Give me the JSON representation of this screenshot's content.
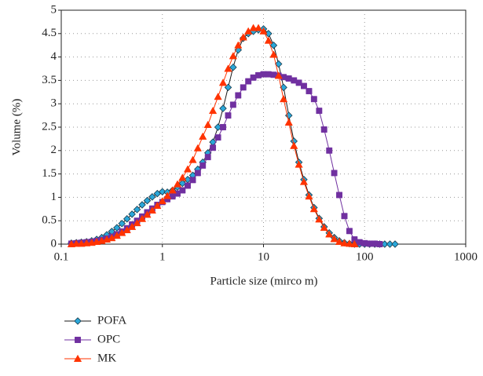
{
  "chart_data": {
    "type": "line",
    "x_label": "Particle size (mirco m)",
    "y_label": "Volume (%)",
    "x_log": true,
    "grid": true,
    "legend": "bottom-left",
    "xlim": [
      0.1,
      1000
    ],
    "xticks": [
      0.1,
      1,
      10,
      100,
      1000
    ],
    "ylim": [
      0,
      5
    ],
    "yticks": [
      0,
      0.5,
      1,
      1.5,
      2,
      2.5,
      3,
      3.5,
      4,
      4.5,
      5
    ],
    "x": [
      0.126,
      0.141,
      0.158,
      0.178,
      0.2,
      0.224,
      0.251,
      0.282,
      0.316,
      0.355,
      0.398,
      0.447,
      0.501,
      0.562,
      0.631,
      0.708,
      0.794,
      0.891,
      1,
      1.12,
      1.26,
      1.41,
      1.58,
      1.78,
      2,
      2.24,
      2.51,
      2.82,
      3.16,
      3.55,
      3.98,
      4.47,
      5.01,
      5.62,
      6.31,
      7.08,
      7.94,
      8.91,
      10,
      11.2,
      12.6,
      14.1,
      15.8,
      17.8,
      20,
      22.4,
      25.1,
      28.2,
      31.6,
      35.5,
      39.8,
      44.7,
      50.1,
      56.2,
      63.1,
      70.8,
      79.4,
      89.1,
      100,
      112,
      126,
      141,
      158,
      178,
      200
    ],
    "series": [
      {
        "name": "POFA",
        "color": "#2aa7d9",
        "line_color": "#1a1a1a",
        "marker": "diamond",
        "values": [
          0.02,
          0.03,
          0.04,
          0.05,
          0.07,
          0.1,
          0.14,
          0.2,
          0.27,
          0.35,
          0.44,
          0.54,
          0.64,
          0.74,
          0.84,
          0.93,
          1.01,
          1.08,
          1.12,
          1.11,
          1.15,
          1.22,
          1.3,
          1.38,
          1.47,
          1.6,
          1.75,
          1.95,
          2.18,
          2.5,
          2.9,
          3.35,
          3.78,
          4.15,
          4.4,
          4.5,
          4.55,
          4.58,
          4.6,
          4.5,
          4.25,
          3.85,
          3.35,
          2.75,
          2.2,
          1.75,
          1.38,
          1.05,
          0.78,
          0.55,
          0.37,
          0.24,
          0.14,
          0.07,
          0.03,
          0.01,
          0,
          0,
          0,
          0,
          0,
          0,
          0,
          0,
          0
        ]
      },
      {
        "name": "OPC",
        "color": "#7030a0",
        "line_color": "#7030a0",
        "marker": "square",
        "values": [
          0.01,
          0.02,
          0.03,
          0.04,
          0.05,
          0.07,
          0.09,
          0.12,
          0.16,
          0.21,
          0.27,
          0.34,
          0.42,
          0.5,
          0.59,
          0.68,
          0.76,
          0.84,
          0.9,
          0.96,
          1.02,
          1.08,
          1.15,
          1.25,
          1.37,
          1.52,
          1.68,
          1.86,
          2.06,
          2.28,
          2.5,
          2.75,
          2.98,
          3.18,
          3.35,
          3.48,
          3.56,
          3.61,
          3.63,
          3.63,
          3.62,
          3.6,
          3.57,
          3.54,
          3.5,
          3.45,
          3.38,
          3.27,
          3.1,
          2.85,
          2.45,
          2.0,
          1.52,
          1.05,
          0.6,
          0.28,
          0.1,
          0.04,
          0.02,
          0.01,
          0.01,
          0,
          null,
          null,
          null
        ]
      },
      {
        "name": "MK",
        "color": "#ff3300",
        "line_color": "#ff3300",
        "marker": "triangle",
        "values": [
          0,
          0.01,
          0.01,
          0.02,
          0.03,
          0.05,
          0.07,
          0.1,
          0.13,
          0.18,
          0.24,
          0.3,
          0.37,
          0.45,
          0.54,
          0.63,
          0.72,
          0.82,
          0.92,
          1.03,
          1.15,
          1.28,
          1.42,
          1.6,
          1.8,
          2.05,
          2.3,
          2.55,
          2.85,
          3.15,
          3.45,
          3.75,
          4.02,
          4.25,
          4.42,
          4.55,
          4.62,
          4.62,
          4.55,
          4.35,
          4.05,
          3.6,
          3.1,
          2.6,
          2.1,
          1.7,
          1.33,
          1.02,
          0.75,
          0.53,
          0.35,
          0.21,
          0.11,
          0.05,
          0.02,
          0.01,
          0,
          null,
          null,
          null,
          null,
          null,
          null,
          null,
          null
        ]
      }
    ]
  }
}
